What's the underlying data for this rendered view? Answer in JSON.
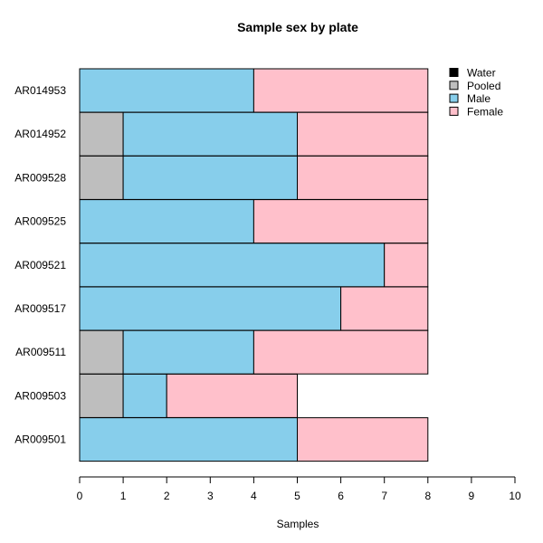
{
  "chart_data": {
    "type": "bar",
    "orientation": "horizontal",
    "stacked": true,
    "title": "Sample sex by plate",
    "xlabel": "Samples",
    "ylabel": "",
    "xlim": [
      0,
      10
    ],
    "x_ticks": [
      0,
      1,
      2,
      3,
      4,
      5,
      6,
      7,
      8,
      9,
      10
    ],
    "categories": [
      "AR014953",
      "AR014952",
      "AR009528",
      "AR009525",
      "AR009521",
      "AR009517",
      "AR009511",
      "AR009503",
      "AR009501"
    ],
    "series": [
      {
        "name": "Water",
        "color": "#000000",
        "values": [
          0,
          0,
          0,
          0,
          0,
          0,
          0,
          0,
          0
        ]
      },
      {
        "name": "Pooled",
        "color": "#bebebe",
        "values": [
          0,
          1,
          1,
          0,
          0,
          0,
          1,
          1,
          0
        ]
      },
      {
        "name": "Male",
        "color": "#87ceeb",
        "values": [
          4,
          4,
          4,
          4,
          7,
          6,
          3,
          1,
          5
        ]
      },
      {
        "name": "Female",
        "color": "#ffc0cb",
        "values": [
          4,
          3,
          3,
          4,
          1,
          2,
          4,
          3,
          3
        ]
      }
    ],
    "grid": false,
    "legend_position": "top-right"
  }
}
